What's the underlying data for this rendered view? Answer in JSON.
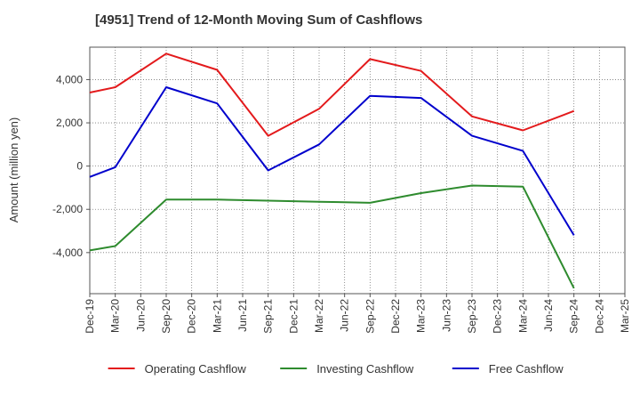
{
  "chart_data": {
    "type": "line",
    "title": "[4951]  Trend of 12-Month Moving Sum of Cashflows",
    "xlabel": "",
    "ylabel": "Amount (million yen)",
    "categories": [
      "Dec-19",
      "Mar-20",
      "Jun-20",
      "Sep-20",
      "Dec-20",
      "Mar-21",
      "Jun-21",
      "Sep-21",
      "Dec-21",
      "Mar-22",
      "Jun-22",
      "Sep-22",
      "Dec-22",
      "Mar-23",
      "Jun-23",
      "Sep-23",
      "Dec-23",
      "Mar-24",
      "Jun-24",
      "Sep-24",
      "Dec-24",
      "Mar-25"
    ],
    "ylim": [
      -5900,
      5500
    ],
    "yticks": [
      -4000,
      -2000,
      0,
      2000,
      4000
    ],
    "ytick_labels": [
      "-4,000",
      "-2,000",
      "0",
      "2,000",
      "4,000"
    ],
    "grid": true,
    "legend_position": "bottom",
    "series": [
      {
        "name": "Operating Cashflow",
        "color": "#e31a1c",
        "values": [
          3400,
          3650,
          null,
          5200,
          null,
          4450,
          null,
          1400,
          null,
          2650,
          null,
          4950,
          null,
          4400,
          null,
          2300,
          null,
          1650,
          null,
          2550,
          null,
          null
        ]
      },
      {
        "name": "Investing Cashflow",
        "color": "#2e8b2e",
        "values": [
          -3900,
          -3700,
          null,
          -1550,
          null,
          -1550,
          null,
          -1600,
          null,
          -1650,
          null,
          -1700,
          null,
          -1250,
          null,
          -900,
          null,
          -950,
          null,
          -5650,
          null,
          null
        ]
      },
      {
        "name": "Free Cashflow",
        "color": "#0000cc",
        "values": [
          -500,
          -50,
          null,
          3650,
          null,
          2900,
          null,
          -200,
          null,
          1000,
          null,
          3250,
          null,
          3150,
          null,
          1400,
          null,
          700,
          null,
          -3200,
          null,
          null
        ]
      }
    ]
  }
}
